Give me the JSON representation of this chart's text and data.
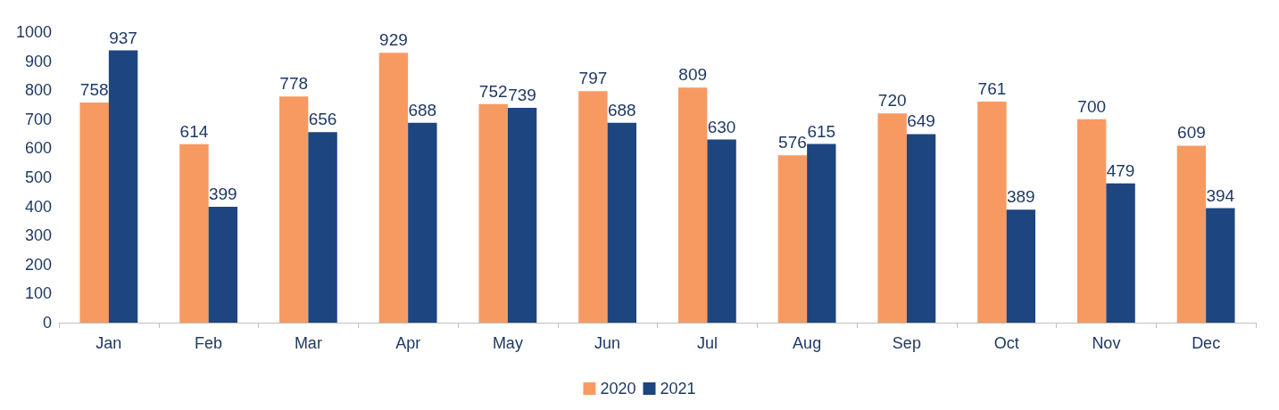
{
  "chart_data": {
    "type": "bar",
    "categories": [
      "Jan",
      "Feb",
      "Mar",
      "Apr",
      "May",
      "Jun",
      "Jul",
      "Aug",
      "Sep",
      "Oct",
      "Nov",
      "Dec"
    ],
    "series": [
      {
        "name": "2020",
        "color": "#f79a62",
        "values": [
          758,
          614,
          778,
          929,
          752,
          797,
          809,
          576,
          720,
          761,
          700,
          609
        ]
      },
      {
        "name": "2021",
        "color": "#1d4580",
        "values": [
          937,
          399,
          656,
          688,
          739,
          688,
          630,
          615,
          649,
          389,
          479,
          394
        ]
      }
    ],
    "ylim": [
      0,
      1000
    ],
    "yticks": [
      0,
      100,
      200,
      300,
      400,
      500,
      600,
      700,
      800,
      900,
      1000
    ],
    "grid": false,
    "legend": "bottom",
    "data_labels": true
  }
}
